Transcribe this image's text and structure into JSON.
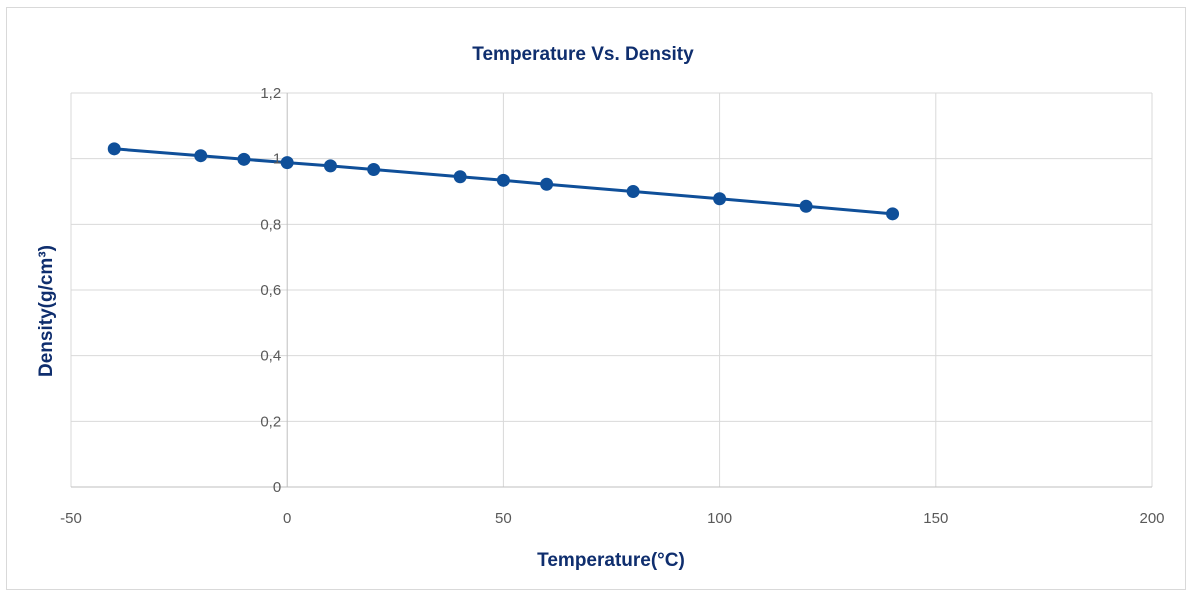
{
  "chart_data": {
    "type": "scatter",
    "title": "Temperature Vs. Density",
    "xlabel": "Temperature(°C)",
    "ylabel": "Density(g/cm³)",
    "xlim": [
      -50,
      200
    ],
    "ylim": [
      0,
      1.2
    ],
    "x_ticks": [
      -50,
      0,
      50,
      100,
      150,
      200
    ],
    "x_tick_labels": [
      "-50",
      "0",
      "50",
      "100",
      "150",
      "200"
    ],
    "y_ticks": [
      0,
      0.2,
      0.4,
      0.6,
      0.8,
      1,
      1.2
    ],
    "y_tick_labels": [
      "0",
      "0,2",
      "0,4",
      "0,6",
      "0,8",
      "1",
      "1,2"
    ],
    "grid": true,
    "legend": "none",
    "series": [
      {
        "x": [
          -40,
          -20,
          -10,
          0,
          10,
          20,
          40,
          50,
          60,
          80,
          100,
          120,
          140
        ],
        "y": [
          1.03,
          1.009,
          0.998,
          0.988,
          0.978,
          0.967,
          0.945,
          0.934,
          0.922,
          0.9,
          0.878,
          0.855,
          0.832
        ],
        "color": "#0f4f99",
        "marker": "circle",
        "line": "straight"
      }
    ],
    "colors": {
      "title": "#0f2e6e",
      "axis_title": "#0f2e6e",
      "tick_label": "#595959",
      "gridline": "#d9d9d9",
      "axis_line": "#bfbfbf",
      "frame_border": "#d9d9d9"
    }
  }
}
